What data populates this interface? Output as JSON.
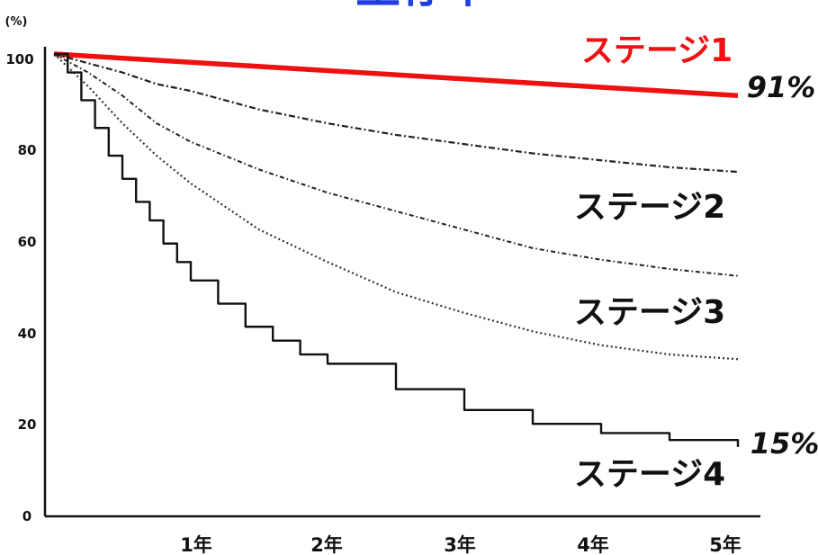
{
  "title": "生存率",
  "chart_data": {
    "type": "line",
    "title": "生存率",
    "ylabel": "(%)",
    "xlabel": "",
    "ylim": [
      0,
      100
    ],
    "xlim": [
      0,
      5
    ],
    "y_ticks": [
      "0",
      "20",
      "40",
      "60",
      "80",
      "100"
    ],
    "x_ticks": [
      {
        "value": 1,
        "label": "1年"
      },
      {
        "value": 2,
        "label": "2年"
      },
      {
        "value": 3,
        "label": "3年"
      },
      {
        "value": 4,
        "label": "4年"
      },
      {
        "value": 5,
        "label": "5年"
      }
    ],
    "grid": false,
    "series": [
      {
        "name": "ステージ1",
        "color": "#ee1111",
        "style": "solid-thick",
        "end_label": "91%",
        "x": [
          0,
          1,
          2,
          3,
          4,
          5
        ],
        "y": [
          100,
          98.2,
          96.4,
          94.6,
          92.8,
          91
        ]
      },
      {
        "name": "ステージ2",
        "color": "#222222",
        "style": "dash-dot",
        "end_label": "",
        "x": [
          0,
          0.25,
          0.5,
          0.75,
          1,
          1.5,
          2,
          2.5,
          3,
          3.5,
          4,
          4.5,
          5
        ],
        "y": [
          100,
          98,
          96,
          93.5,
          92,
          88,
          85,
          82.5,
          80.5,
          78.5,
          77,
          75.5,
          74.5
        ]
      },
      {
        "name": "ステージ3",
        "color": "#222222",
        "style": "dash-dot-fine",
        "end_label": "",
        "x": [
          0,
          0.25,
          0.5,
          0.75,
          1,
          1.5,
          2,
          2.5,
          3,
          3.5,
          4,
          4.5,
          5
        ],
        "y": [
          100,
          96,
          91,
          85,
          81,
          75,
          70,
          66,
          62,
          58,
          55.5,
          53.5,
          52
        ]
      },
      {
        "name": "ステージ3",
        "color": "#333333",
        "style": "dotted",
        "end_label": "",
        "x": [
          0,
          0.25,
          0.5,
          0.75,
          1,
          1.5,
          2,
          2.5,
          3,
          3.5,
          4,
          4.5,
          5
        ],
        "y": [
          100,
          93,
          85,
          78,
          72,
          62,
          55,
          48.5,
          44,
          40,
          37,
          35,
          34
        ]
      },
      {
        "name": "ステージ4",
        "color": "#111111",
        "style": "solid-step",
        "end_label": "15%",
        "x": [
          0,
          0.1,
          0.2,
          0.3,
          0.4,
          0.5,
          0.6,
          0.7,
          0.8,
          0.9,
          1,
          1.2,
          1.4,
          1.6,
          1.8,
          2,
          2.5,
          3,
          3.5,
          4,
          4.5,
          5
        ],
        "y": [
          100,
          96,
          90,
          84,
          78,
          73,
          68,
          64,
          59,
          55,
          51,
          46,
          41,
          38,
          35,
          33,
          27.5,
          23,
          20,
          18,
          16.5,
          15
        ]
      }
    ],
    "series_labels": [
      "ステージ1",
      "ステージ2",
      "ステージ3",
      "ステージ4"
    ]
  }
}
